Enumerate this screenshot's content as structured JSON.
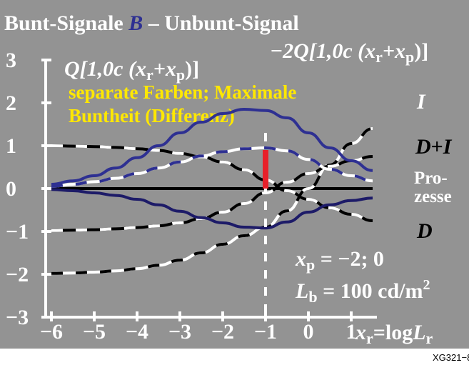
{
  "title": {
    "part1": "Bunt-Signale",
    "b": "B",
    "part2": "– Unbunt-Signal"
  },
  "label_q1": "Q[1,0c (x",
  "label_q1_sub1": "r",
  "label_q1_plus": "+x",
  "label_q1_sub2": "p",
  "label_q1_end": ")]",
  "label_q2": "−2Q[1,0c (x",
  "label_q2_sub1": "r",
  "label_q2_plus": "+x",
  "label_q2_sub2": "p",
  "label_q2_end": ")]",
  "yellow_line1": "separate Farben; Maximale",
  "yellow_line2": "Buntheit (Differenz)",
  "curve_labels": {
    "I": "I",
    "DI_D": "D",
    "DI_plus": "+",
    "DI_I": "I",
    "prozesse1": "Pro-",
    "prozesse2": "zesse",
    "D": "D"
  },
  "param": {
    "xp_x": "x",
    "xp_sub": "p",
    "xp_rest": " = −2; 0",
    "lb_L": "L",
    "lb_sub": "b",
    "lb_rest": " = 100 cd/m",
    "lb_sup": "2"
  },
  "x_axis": {
    "ticks": [
      "−6",
      "−5",
      "−4",
      "−3",
      "−2",
      "−1",
      "0",
      "1"
    ],
    "label_x": "x",
    "label_sub": "r",
    "label_eq": "=log",
    "label_L": "L",
    "label_sub2": "r"
  },
  "y_axis": {
    "ticks": [
      "3",
      "2",
      "1",
      "0",
      "−1",
      "−2",
      "−3"
    ]
  },
  "code": "XG321−8",
  "colors": {
    "background": "#939393",
    "blue": "#2e3092",
    "navy": "#1d1b68",
    "red": "#e8202a",
    "yellow": "#ffe800"
  },
  "chart_data": {
    "type": "line",
    "xlim": [
      -6,
      1.6
    ],
    "ylim": [
      -3,
      3
    ],
    "marker_x": -1,
    "marker_bar": [
      0,
      0.9
    ],
    "series": [
      {
        "name": "I",
        "x": [
          -6,
          -5.5,
          -5,
          -4.5,
          -4,
          -3.5,
          -3,
          -2.5,
          -2,
          -1.5,
          -1,
          -0.5,
          0,
          0.5,
          1,
          1.5
        ],
        "y": [
          -1.98,
          -1.97,
          -1.95,
          -1.92,
          -1.87,
          -1.79,
          -1.67,
          -1.5,
          -1.3,
          -1.1,
          -0.9,
          -0.52,
          0,
          0.55,
          1.05,
          1.4
        ]
      },
      {
        "name": "D+I",
        "x": [
          -6,
          -5.5,
          -5,
          -4.5,
          -4,
          -3.5,
          -3,
          -2.5,
          -2,
          -1.5,
          -1,
          -0.5,
          0,
          0.5,
          1,
          1.5
        ],
        "y": [
          -0.98,
          -0.97,
          -0.96,
          -0.94,
          -0.91,
          -0.87,
          -0.8,
          -0.7,
          -0.55,
          -0.35,
          -0.1,
          0.15,
          0.35,
          0.52,
          0.65,
          0.75
        ]
      },
      {
        "name": "D",
        "x": [
          -6,
          -5.5,
          -5,
          -4.5,
          -4,
          -3.5,
          -3,
          -2.5,
          -2,
          -1.5,
          -1,
          -0.5,
          0,
          0.5,
          1,
          1.5
        ],
        "y": [
          1,
          0.99,
          0.98,
          0.96,
          0.93,
          0.89,
          0.82,
          0.74,
          0.62,
          0.44,
          0.2,
          -0.05,
          -0.25,
          -0.45,
          -0.6,
          -0.75
        ]
      },
      {
        "name": "",
        "x": [
          -6,
          -5.5,
          -5,
          -4.5,
          -4,
          -3.5,
          -3,
          -2.5,
          -2,
          -1.5,
          -1,
          -0.5,
          0,
          0.5,
          1,
          1.5
        ],
        "y": [
          0.05,
          0.1,
          0.16,
          0.24,
          0.35,
          0.48,
          0.62,
          0.76,
          0.86,
          0.93,
          0.95,
          0.88,
          0.68,
          0.45,
          0.3,
          0.18
        ]
      },
      {
        "name": "",
        "x": [
          -6,
          -5.5,
          -5,
          -4.5,
          -4,
          -3.5,
          -3,
          -2.5,
          -2,
          -1.5,
          -1,
          -0.5,
          0,
          0.5,
          1,
          1.5
        ],
        "y": [
          0.1,
          0.18,
          0.3,
          0.48,
          0.72,
          1.0,
          1.3,
          1.55,
          1.75,
          1.85,
          1.82,
          1.65,
          1.3,
          0.95,
          0.65,
          0.42
        ]
      },
      {
        "name": "",
        "x": [
          -6,
          -5.5,
          -5,
          -4.5,
          -4,
          -3.5,
          -3,
          -2.5,
          -2,
          -1.5,
          -1,
          -0.5,
          0,
          0.5,
          1,
          1.5
        ],
        "y": [
          -0.02,
          -0.05,
          -0.1,
          -0.16,
          -0.25,
          -0.38,
          -0.53,
          -0.68,
          -0.8,
          -0.9,
          -0.92,
          -0.78,
          -0.55,
          -0.38,
          -0.28,
          -0.22
        ]
      }
    ]
  }
}
